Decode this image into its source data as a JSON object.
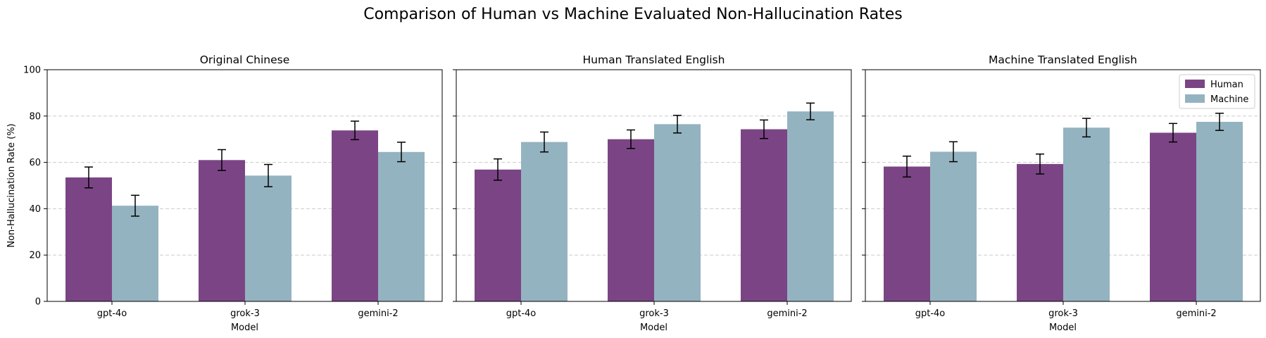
{
  "figure": {
    "title": "Comparison of Human vs Machine Evaluated Non-Hallucination Rates"
  },
  "legend": {
    "placement": "top-right",
    "entries": [
      "Human",
      "Machine"
    ]
  },
  "colors": {
    "human": "#7b4585",
    "machine": "#94b3c0",
    "grid": "#cccccc",
    "error_bar": "#000000"
  },
  "chart_data": [
    {
      "type": "bar",
      "title": "Original Chinese",
      "xlabel": "Model",
      "ylabel": "Non-Hallucination Rate (%)",
      "ylim": [
        0,
        100
      ],
      "yticks": [
        0,
        20,
        40,
        60,
        80,
        100
      ],
      "grid": "y, dashed",
      "categories": [
        "gpt-4o",
        "grok-3",
        "gemini-2"
      ],
      "series": [
        {
          "name": "Human",
          "values": [
            53.5,
            61.0,
            73.8
          ],
          "errors": [
            4.5,
            4.5,
            4.0
          ]
        },
        {
          "name": "Machine",
          "values": [
            41.3,
            54.3,
            64.5
          ],
          "errors": [
            4.5,
            4.8,
            4.2
          ]
        }
      ]
    },
    {
      "type": "bar",
      "title": "Human Translated English",
      "xlabel": "Model",
      "ylabel": "",
      "ylim": [
        0,
        100
      ],
      "yticks": [
        0,
        20,
        40,
        60,
        80,
        100
      ],
      "grid": "y, dashed",
      "categories": [
        "gpt-4o",
        "grok-3",
        "gemini-2"
      ],
      "series": [
        {
          "name": "Human",
          "values": [
            56.9,
            70.0,
            74.3
          ],
          "errors": [
            4.6,
            4.0,
            4.0
          ]
        },
        {
          "name": "Machine",
          "values": [
            68.8,
            76.5,
            82.0
          ],
          "errors": [
            4.3,
            3.8,
            3.6
          ]
        }
      ]
    },
    {
      "type": "bar",
      "title": "Machine Translated English",
      "xlabel": "Model",
      "ylabel": "",
      "ylim": [
        0,
        100
      ],
      "yticks": [
        0,
        20,
        40,
        60,
        80,
        100
      ],
      "grid": "y, dashed",
      "categories": [
        "gpt-4o",
        "grok-3",
        "gemini-2"
      ],
      "series": [
        {
          "name": "Human",
          "values": [
            58.2,
            59.3,
            72.8
          ],
          "errors": [
            4.5,
            4.3,
            4.0
          ]
        },
        {
          "name": "Machine",
          "values": [
            64.6,
            75.0,
            77.5
          ],
          "errors": [
            4.3,
            4.0,
            3.7
          ]
        }
      ]
    }
  ]
}
